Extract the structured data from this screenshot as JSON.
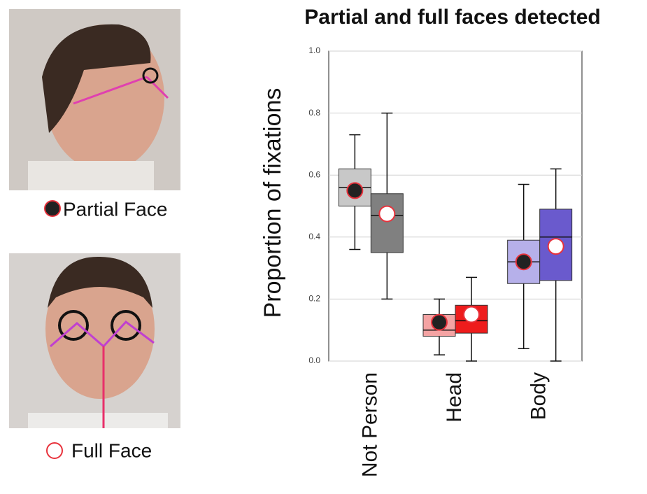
{
  "chart_data": {
    "type": "box",
    "title": "Partial and full faces detected",
    "y_label": "Proportion of fixations",
    "categories": [
      "Not Person",
      "Head",
      "Body"
    ],
    "ylim": [
      0,
      1
    ],
    "yticks": [
      {
        "value": 0,
        "label": "0.0"
      },
      {
        "value": 0.2,
        "label": "0.2"
      },
      {
        "value": 0.4,
        "label": "0.4"
      },
      {
        "value": 0.6,
        "label": "0.6"
      },
      {
        "value": 0.8,
        "label": "0.8"
      },
      {
        "value": 1,
        "label": "1.0"
      }
    ],
    "grid": true,
    "series": [
      {
        "name": "Partial Face",
        "colors": [
          "#c8c8c8",
          "#f4a3a3",
          "#b6b0ea"
        ],
        "mean_color": "#222222",
        "mean_edge": "#e8323c",
        "whisker_low": [
          0.36,
          0.02,
          0.04
        ],
        "q1": [
          0.5,
          0.08,
          0.25
        ],
        "median": [
          0.56,
          0.1,
          0.32
        ],
        "q3": [
          0.62,
          0.15,
          0.39
        ],
        "whisker_high": [
          0.73,
          0.2,
          0.57
        ],
        "mean": [
          0.55,
          0.125,
          0.32
        ]
      },
      {
        "name": "Full Face",
        "colors": [
          "#808080",
          "#ee1c1c",
          "#6a5acd"
        ],
        "mean_color": "#ffffff",
        "mean_edge": "#e8323c",
        "whisker_low": [
          0.2,
          0.0,
          0.0
        ],
        "q1": [
          0.35,
          0.09,
          0.26
        ],
        "median": [
          0.47,
          0.13,
          0.4
        ],
        "q3": [
          0.54,
          0.18,
          0.49
        ],
        "whisker_high": [
          0.8,
          0.27,
          0.62
        ],
        "mean": [
          0.475,
          0.15,
          0.37
        ]
      }
    ]
  }
}
